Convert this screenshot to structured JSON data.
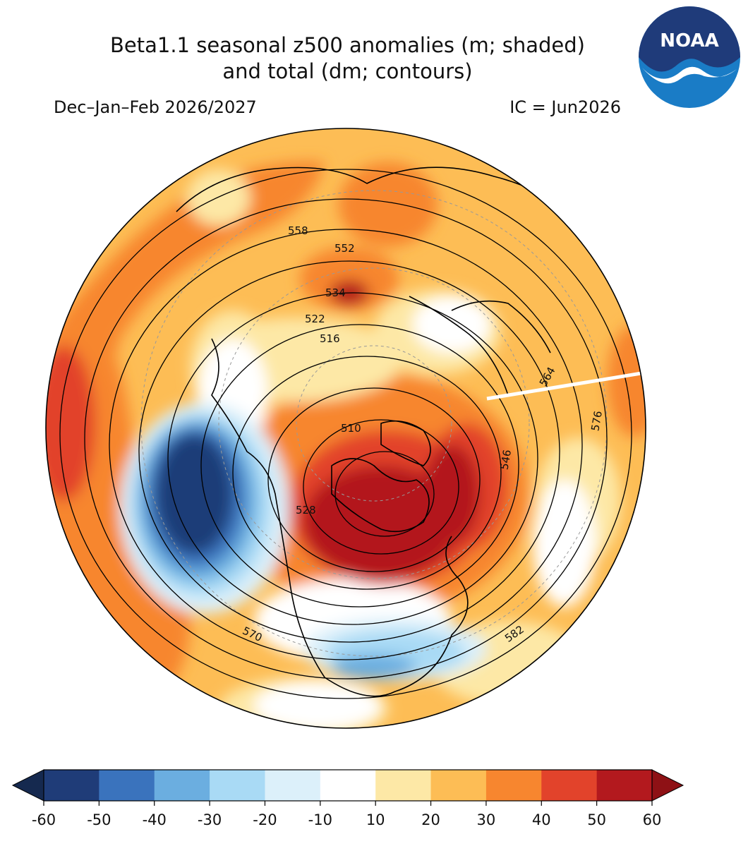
{
  "title": {
    "line1": "Beta1.1 seasonal z500 anomalies (m; shaded)",
    "line2": "and total (dm; contours)"
  },
  "subtitle_left": "Dec–Jan–Feb 2026/2027",
  "subtitle_right": "IC = Jun2026",
  "logo": {
    "text": "NOAA",
    "colors": {
      "top": "#1f3b7a",
      "bottom": "#1a7cc6"
    }
  },
  "contour_labels": [
    {
      "text": "558"
    },
    {
      "text": "552"
    },
    {
      "text": "534"
    },
    {
      "text": "522"
    },
    {
      "text": "516"
    },
    {
      "text": "510"
    },
    {
      "text": "528"
    },
    {
      "text": "546"
    },
    {
      "text": "564"
    },
    {
      "text": "576"
    },
    {
      "text": "570"
    },
    {
      "text": "582"
    }
  ],
  "colorbar": {
    "ticks": [
      "-60",
      "-50",
      "-40",
      "-30",
      "-20",
      "-10",
      "10",
      "20",
      "30",
      "40",
      "50",
      "60"
    ],
    "colors": [
      "#1f3c78",
      "#3a73bd",
      "#6baee0",
      "#a9daf5",
      "#dcf0fa",
      "#ffffff",
      "#fde8a6",
      "#fdbd55",
      "#f7862f",
      "#e2432b",
      "#b3191e"
    ],
    "under_color": "#15294f",
    "over_color": "#8e1115"
  }
}
